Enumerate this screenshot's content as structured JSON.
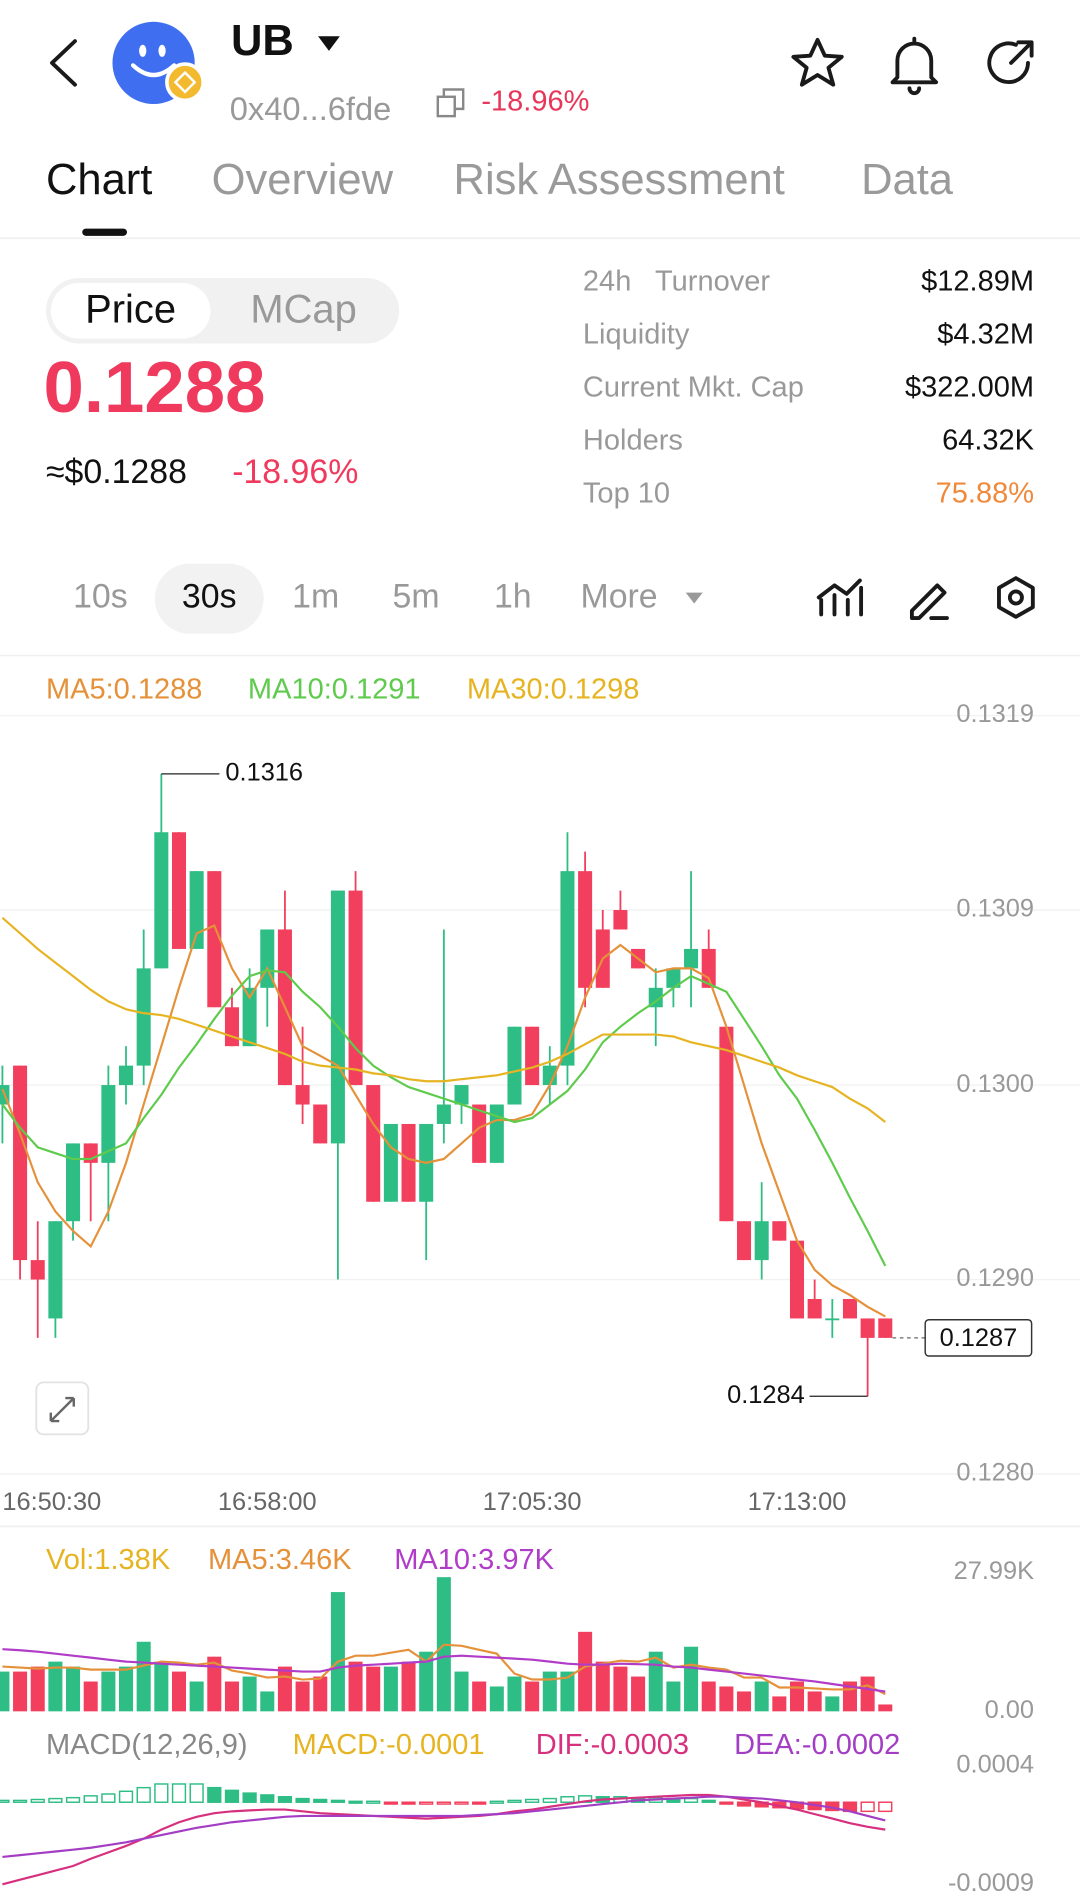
{
  "header": {
    "title": "UB",
    "address": "0x40...6fde",
    "change": "-18.96%"
  },
  "tabs": [
    "Chart",
    "Overview",
    "Risk Assessment",
    "Data"
  ],
  "toggle": [
    "Price",
    "MCap"
  ],
  "price": "0.1288",
  "price_usd": "≈$0.1288",
  "price_change": "-18.96%",
  "stats": [
    {
      "label": "24h   Turnover",
      "value": "$12.89M"
    },
    {
      "label": "Liquidity",
      "value": "$4.32M"
    },
    {
      "label": "Current Mkt. Cap",
      "value": "$322.00M"
    },
    {
      "label": "Holders",
      "value": "64.32K"
    },
    {
      "label": "Top 10",
      "value": "75.88%",
      "color": "#ef8a3c"
    }
  ],
  "intervals": [
    "10s",
    "30s",
    "1m",
    "5m",
    "1h",
    "More"
  ],
  "chart_data": [
    {
      "type": "candlestick",
      "categories": [
        "16:50:30",
        null,
        null,
        null,
        null,
        null,
        null,
        null,
        null,
        null,
        null,
        null,
        null,
        null,
        null,
        "16:58:00",
        null,
        null,
        null,
        null,
        null,
        null,
        null,
        null,
        null,
        null,
        null,
        null,
        null,
        null,
        "17:05:30",
        null,
        null,
        null,
        null,
        null,
        null,
        null,
        null,
        null,
        null,
        null,
        null,
        null,
        null,
        "17:13:00",
        null,
        null,
        null,
        null,
        null
      ],
      "open": [
        0.1299,
        0.1301,
        0.1291,
        0.1288,
        0.1293,
        0.1297,
        0.1296,
        0.13,
        0.1301,
        0.1306,
        0.1313,
        0.1307,
        0.1311,
        0.1304,
        0.1302,
        0.1305,
        0.1308,
        0.13,
        0.1299,
        0.1297,
        0.131,
        0.13,
        0.1294,
        0.1298,
        0.1294,
        0.1298,
        0.1299,
        0.1299,
        0.1296,
        0.1299,
        0.1303,
        0.13,
        0.1301,
        0.1311,
        0.1308,
        0.1309,
        0.1307,
        0.1304,
        0.1305,
        0.1306,
        0.1307,
        0.1303,
        0.1293,
        0.1291,
        0.1293,
        0.1292,
        0.1289,
        0.1288,
        0.1289,
        0.1288,
        0.1288
      ],
      "high": [
        0.1301,
        0.1301,
        0.1293,
        0.1293,
        0.1297,
        0.1297,
        0.1301,
        0.1302,
        0.1308,
        0.1316,
        0.1313,
        0.1311,
        0.1311,
        0.1305,
        0.1306,
        0.1308,
        0.131,
        0.1303,
        0.1299,
        0.131,
        0.1311,
        0.13,
        0.1298,
        0.1298,
        0.1298,
        0.1308,
        0.13,
        0.1299,
        0.1299,
        0.1303,
        0.1303,
        0.1302,
        0.1313,
        0.1312,
        0.1309,
        0.131,
        0.1307,
        0.1306,
        0.1306,
        0.1311,
        0.1308,
        0.1303,
        0.1293,
        0.1295,
        0.1293,
        0.1292,
        0.129,
        0.1289,
        0.1289,
        0.1288,
        0.1288
      ],
      "low": [
        0.1297,
        0.129,
        0.1287,
        0.1287,
        0.1292,
        0.1293,
        0.1293,
        0.1299,
        0.13,
        0.1306,
        0.1307,
        0.1307,
        0.1304,
        0.1302,
        0.1302,
        0.1303,
        0.13,
        0.1298,
        0.1297,
        0.129,
        0.13,
        0.1294,
        0.1294,
        0.1294,
        0.1291,
        0.1297,
        0.1298,
        0.1296,
        0.1296,
        0.1299,
        0.13,
        0.1299,
        0.13,
        0.1304,
        0.1305,
        0.1308,
        0.1306,
        0.1302,
        0.1304,
        0.1304,
        0.1305,
        0.1293,
        0.1291,
        0.129,
        0.1292,
        0.1288,
        0.1288,
        0.1287,
        0.1288,
        0.1284,
        0.1287
      ],
      "close": [
        0.13,
        0.1291,
        0.129,
        0.1293,
        0.1297,
        0.1296,
        0.13,
        0.1301,
        0.1306,
        0.1313,
        0.1307,
        0.1311,
        0.1304,
        0.1302,
        0.1305,
        0.1308,
        0.13,
        0.1299,
        0.1297,
        0.131,
        0.13,
        0.1294,
        0.1298,
        0.1294,
        0.1298,
        0.1299,
        0.13,
        0.1296,
        0.1299,
        0.1303,
        0.13,
        0.1301,
        0.1311,
        0.1305,
        0.1305,
        0.1308,
        0.1306,
        0.1305,
        0.1306,
        0.1307,
        0.1305,
        0.1293,
        0.1291,
        0.1293,
        0.1292,
        0.1288,
        0.1288,
        0.1288,
        0.1288,
        0.1287,
        0.1287
      ],
      "up_color": "#2ebd85",
      "down_color": "#f23f5d",
      "ylim": [
        0.12798,
        0.13219
      ],
      "yticks": [
        {
          "value": 0.128,
          "label": "0.1280"
        },
        {
          "value": 0.129,
          "label": "0.1290"
        },
        {
          "value": 0.13,
          "label": "0.1300"
        },
        0.1309,
        0.1319
      ],
      "grid": true,
      "series": [
        {
          "legend": "MA5:0.1288",
          "color": "#e5913a",
          "values": [
            0.12998,
            0.12975,
            0.1295,
            0.12935,
            0.12925,
            0.12917,
            0.12935,
            0.1296,
            0.1299,
            0.1302,
            0.1305,
            0.13078,
            0.13082,
            0.1306,
            0.13045,
            0.1306,
            0.1304,
            0.1302,
            0.13015,
            0.1301,
            0.12995,
            0.1298,
            0.12968,
            0.12962,
            0.1296,
            0.12962,
            0.1297,
            0.12978,
            0.12982,
            0.12982,
            0.12985,
            0.13,
            0.1302,
            0.13045,
            0.13065,
            0.13072,
            0.13065,
            0.13058,
            0.1306,
            0.1306,
            0.13055,
            0.1303,
            0.13,
            0.1297,
            0.12945,
            0.1292,
            0.12905,
            0.12897,
            0.12892,
            0.12886,
            0.12881
          ]
        },
        {
          "legend": "MA10:0.1291",
          "color": "#5ecb4c",
          "values": [
            0.1299,
            0.12978,
            0.12968,
            0.12965,
            0.12962,
            0.12962,
            0.12966,
            0.1297,
            0.12983,
            0.12995,
            0.13009,
            0.13021,
            0.13034,
            0.13046,
            0.13056,
            0.13059,
            0.13058,
            0.13048,
            0.1304,
            0.1303,
            0.13019,
            0.1301,
            0.13004,
            0.12999,
            0.12996,
            0.12993,
            0.1299,
            0.12987,
            0.12984,
            0.12981,
            0.12983,
            0.1299,
            0.12997,
            0.13008,
            0.13022,
            0.1303,
            0.13037,
            0.13043,
            0.1305,
            0.13056,
            0.13052,
            0.13048,
            0.13034,
            0.1302,
            0.13005,
            0.12993,
            0.12977,
            0.1296,
            0.12942,
            0.12925,
            0.12907
          ]
        },
        {
          "legend": "MA30:0.1298",
          "color": "#e6b422",
          "values": [
            0.13086,
            0.13078,
            0.1307,
            0.13063,
            0.13056,
            0.13049,
            0.13043,
            0.13039,
            0.13037,
            0.13036,
            0.13034,
            0.13031,
            0.13028,
            0.13025,
            0.13022,
            0.13019,
            0.13016,
            0.13012,
            0.1301,
            0.13009,
            0.13008,
            0.13006,
            0.13005,
            0.13003,
            0.13002,
            0.13002,
            0.13003,
            0.13004,
            0.13005,
            0.13007,
            0.13009,
            0.13012,
            0.13016,
            0.13021,
            0.13026,
            0.13026,
            0.13026,
            0.13026,
            0.13025,
            0.13022,
            0.1302,
            0.13018,
            0.13015,
            0.13012,
            0.13009,
            0.13005,
            0.13002,
            0.12999,
            0.12993,
            0.12988,
            0.12981
          ]
        }
      ],
      "high_label": "0.1316",
      "low_label": "0.1284",
      "last_price": {
        "value": 0.1287,
        "label": "0.1287"
      }
    },
    {
      "type": "volume",
      "legend": "Vol:1.38K",
      "legend_color": "#e6b422",
      "values": [
        8000,
        8000,
        9000,
        10000,
        9000,
        6000,
        8000,
        9000,
        14000,
        10000,
        8000,
        6000,
        11000,
        6000,
        7000,
        4000,
        9000,
        6000,
        7000,
        24000,
        10000,
        9000,
        9000,
        10000,
        12000,
        27000,
        8000,
        6000,
        5000,
        7000,
        6000,
        8000,
        8000,
        16000,
        10000,
        9000,
        7000,
        12000,
        6000,
        13000,
        6000,
        5000,
        4000,
        6000,
        3000,
        6000,
        4000,
        3000,
        6000,
        7000,
        1380
      ],
      "ylim": [
        0,
        27990
      ],
      "yticks": [
        {
          "value": 27990,
          "label": "27.99K"
        },
        {
          "value": 0,
          "label": "0.00"
        }
      ],
      "series": [
        {
          "legend": "MA5:3.46K",
          "color": "#e5913a",
          "values": [
            9000,
            8800,
            8600,
            8800,
            8800,
            8400,
            8400,
            8400,
            9200,
            10000,
            9800,
            9400,
            9800,
            8200,
            7600,
            6800,
            7000,
            6400,
            6600,
            10000,
            11200,
            11200,
            11800,
            12400,
            10000,
            13400,
            13200,
            12400,
            11600,
            7600,
            6400,
            6400,
            6800,
            9000,
            9600,
            10200,
            10000,
            10800,
            8800,
            9400,
            8800,
            8400,
            6800,
            6800,
            4800,
            4800,
            4600,
            4400,
            4400,
            5200,
            3460
          ]
        },
        {
          "legend": "MA10:3.97K",
          "color": "#b03cc8",
          "values": [
            12500,
            12300,
            12000,
            11600,
            11200,
            10800,
            10400,
            10000,
            9800,
            9600,
            9400,
            9200,
            9000,
            8800,
            8600,
            8400,
            8200,
            8000,
            8000,
            8800,
            9200,
            9400,
            9600,
            9800,
            10000,
            11000,
            11200,
            11000,
            10800,
            10600,
            10400,
            10000,
            9600,
            9400,
            9400,
            9600,
            9500,
            9400,
            9000,
            8800,
            8400,
            8000,
            7600,
            7200,
            6800,
            6400,
            6000,
            5500,
            5000,
            4500,
            3970
          ]
        }
      ]
    },
    {
      "type": "macd",
      "title": "MACD(12,26,9)",
      "legend": "MACD:-0.0001",
      "legend_color": "#e6b422",
      "values": [
        2e-05,
        2e-05,
        3e-05,
        4e-05,
        5e-05,
        7e-05,
        9e-05,
        0.00012,
        0.00016,
        0.0002,
        0.0002,
        0.0002,
        0.00016,
        0.00013,
        0.0001,
        8e-05,
        6e-05,
        4e-05,
        3e-05,
        2e-05,
        1e-05,
        1e-05,
        -1e-05,
        -2e-05,
        -2e-05,
        -1e-05,
        -1e-05,
        -2e-05,
        1e-05,
        2e-05,
        3e-05,
        4e-05,
        6e-05,
        7e-05,
        6e-05,
        6e-05,
        5e-05,
        5e-05,
        4e-05,
        4e-05,
        2e-05,
        -2e-05,
        -4e-05,
        -5e-05,
        -6e-05,
        -7e-05,
        -8e-05,
        -9e-05,
        -0.0001,
        -0.0001,
        -0.0001
      ],
      "ylim": [
        -0.0009,
        0.0004
      ],
      "yticks": [
        0.0004,
        -0.0009
      ],
      "series": [
        {
          "legend": "DIF:-0.0003",
          "color": "#d6307e",
          "values": [
            -0.0009,
            -0.00085,
            -0.0008,
            -0.00075,
            -0.0007,
            -0.00062,
            -0.00055,
            -0.00048,
            -0.0004,
            -0.0003,
            -0.00022,
            -0.00016,
            -0.00012,
            -0.0001,
            -9e-05,
            -8e-05,
            -8e-05,
            -0.0001,
            -0.00012,
            -0.00013,
            -0.00014,
            -0.00015,
            -0.00016,
            -0.00017,
            -0.00018,
            -0.00017,
            -0.00016,
            -0.00015,
            -0.00013,
            -0.0001,
            -8e-05,
            -5e-05,
            -2e-05,
            1e-05,
            3e-05,
            4e-05,
            5e-05,
            6e-05,
            7e-05,
            8e-05,
            8e-05,
            6e-05,
            3e-05,
            0,
            -4e-05,
            -8e-05,
            -0.00013,
            -0.00018,
            -0.00023,
            -0.00027,
            -0.0003
          ]
        },
        {
          "legend": "DEA:-0.0002",
          "color": "#a33ec4",
          "values": [
            -0.0006,
            -0.00058,
            -0.00056,
            -0.00054,
            -0.00052,
            -0.0005,
            -0.00047,
            -0.00044,
            -0.0004,
            -0.00036,
            -0.00032,
            -0.00028,
            -0.00025,
            -0.00022,
            -0.0002,
            -0.00018,
            -0.00016,
            -0.00015,
            -0.00015,
            -0.00015,
            -0.00015,
            -0.00015,
            -0.00015,
            -0.00015,
            -0.00015,
            -0.00015,
            -0.00015,
            -0.00014,
            -0.00013,
            -0.00012,
            -0.0001,
            -8e-05,
            -6e-05,
            -4e-05,
            -2e-05,
            0,
            2e-05,
            3e-05,
            4e-05,
            5e-05,
            6e-05,
            6e-05,
            5e-05,
            4e-05,
            2e-05,
            0,
            -3e-05,
            -6e-05,
            -0.0001,
            -0.00015,
            -0.0002
          ]
        }
      ]
    }
  ]
}
